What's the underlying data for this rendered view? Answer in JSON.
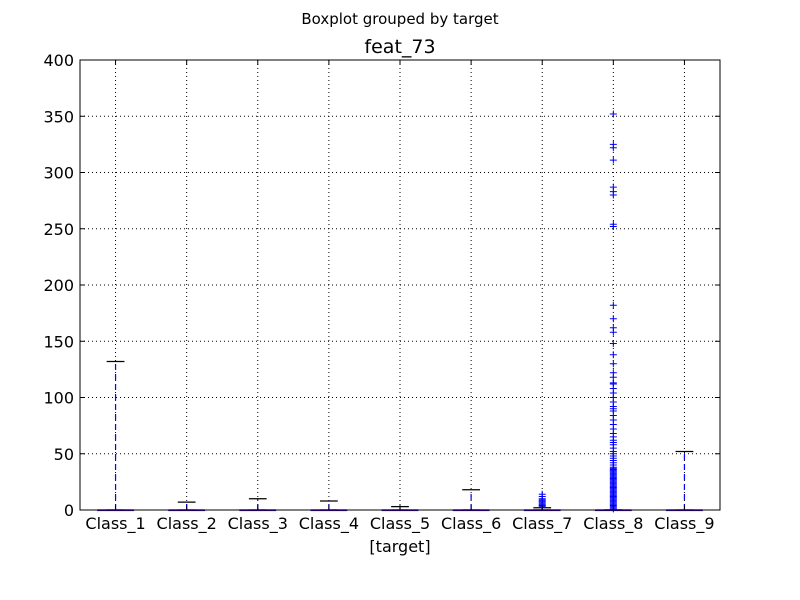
{
  "chart_data": {
    "type": "boxplot",
    "suptitle": "Boxplot grouped by target",
    "title": "feat_73",
    "xlabel": "[target]",
    "ylabel": "",
    "ylim": [
      0,
      400
    ],
    "yticks": [
      0,
      50,
      100,
      150,
      200,
      250,
      300,
      350,
      400
    ],
    "grid": true,
    "colors": {
      "box": "#0000ff",
      "whisker": "#0000ff",
      "cap": "#000000",
      "median": "#ff0000",
      "flier": "#0000ff"
    },
    "categories": [
      "Class_1",
      "Class_2",
      "Class_3",
      "Class_4",
      "Class_5",
      "Class_6",
      "Class_7",
      "Class_8",
      "Class_9"
    ],
    "boxes": [
      {
        "category": "Class_1",
        "q1": 0,
        "median": 0,
        "q3": 0,
        "whisker_low": 0,
        "whisker_high": 132,
        "fliers": []
      },
      {
        "category": "Class_2",
        "q1": 0,
        "median": 0,
        "q3": 0,
        "whisker_low": 0,
        "whisker_high": 7,
        "fliers": []
      },
      {
        "category": "Class_3",
        "q1": 0,
        "median": 0,
        "q3": 0,
        "whisker_low": 0,
        "whisker_high": 10,
        "fliers": []
      },
      {
        "category": "Class_4",
        "q1": 0,
        "median": 0,
        "q3": 0,
        "whisker_low": 0,
        "whisker_high": 8,
        "fliers": []
      },
      {
        "category": "Class_5",
        "q1": 0,
        "median": 0,
        "q3": 0,
        "whisker_low": 0,
        "whisker_high": 3,
        "fliers": []
      },
      {
        "category": "Class_6",
        "q1": 0,
        "median": 0,
        "q3": 0,
        "whisker_low": 0,
        "whisker_high": 18,
        "fliers": []
      },
      {
        "category": "Class_7",
        "q1": 0,
        "median": 0,
        "q3": 0,
        "whisker_low": 0,
        "whisker_high": 2,
        "fliers": [
          3,
          4,
          5,
          6,
          7,
          8,
          9,
          10,
          12,
          14
        ]
      },
      {
        "category": "Class_8",
        "q1": 0,
        "median": 0,
        "q3": 0,
        "whisker_low": 0,
        "whisker_high": 0,
        "fliers": [
          1,
          2,
          3,
          4,
          5,
          6,
          7,
          8,
          9,
          10,
          11,
          12,
          13,
          14,
          15,
          16,
          17,
          18,
          19,
          20,
          21,
          22,
          23,
          24,
          25,
          26,
          27,
          28,
          29,
          30,
          31,
          32,
          33,
          34,
          35,
          36,
          37,
          38,
          40,
          42,
          44,
          46,
          48,
          50,
          52,
          55,
          58,
          60,
          62,
          65,
          68,
          72,
          76,
          80,
          84,
          88,
          90,
          92,
          96,
          100,
          104,
          108,
          112,
          113,
          118,
          122,
          130,
          138,
          148,
          158,
          162,
          170,
          182,
          252,
          254,
          280,
          283,
          287,
          311,
          322,
          325,
          352
        ]
      },
      {
        "category": "Class_9",
        "q1": 0,
        "median": 0,
        "q3": 0,
        "whisker_low": 0,
        "whisker_high": 52,
        "fliers": []
      }
    ]
  }
}
